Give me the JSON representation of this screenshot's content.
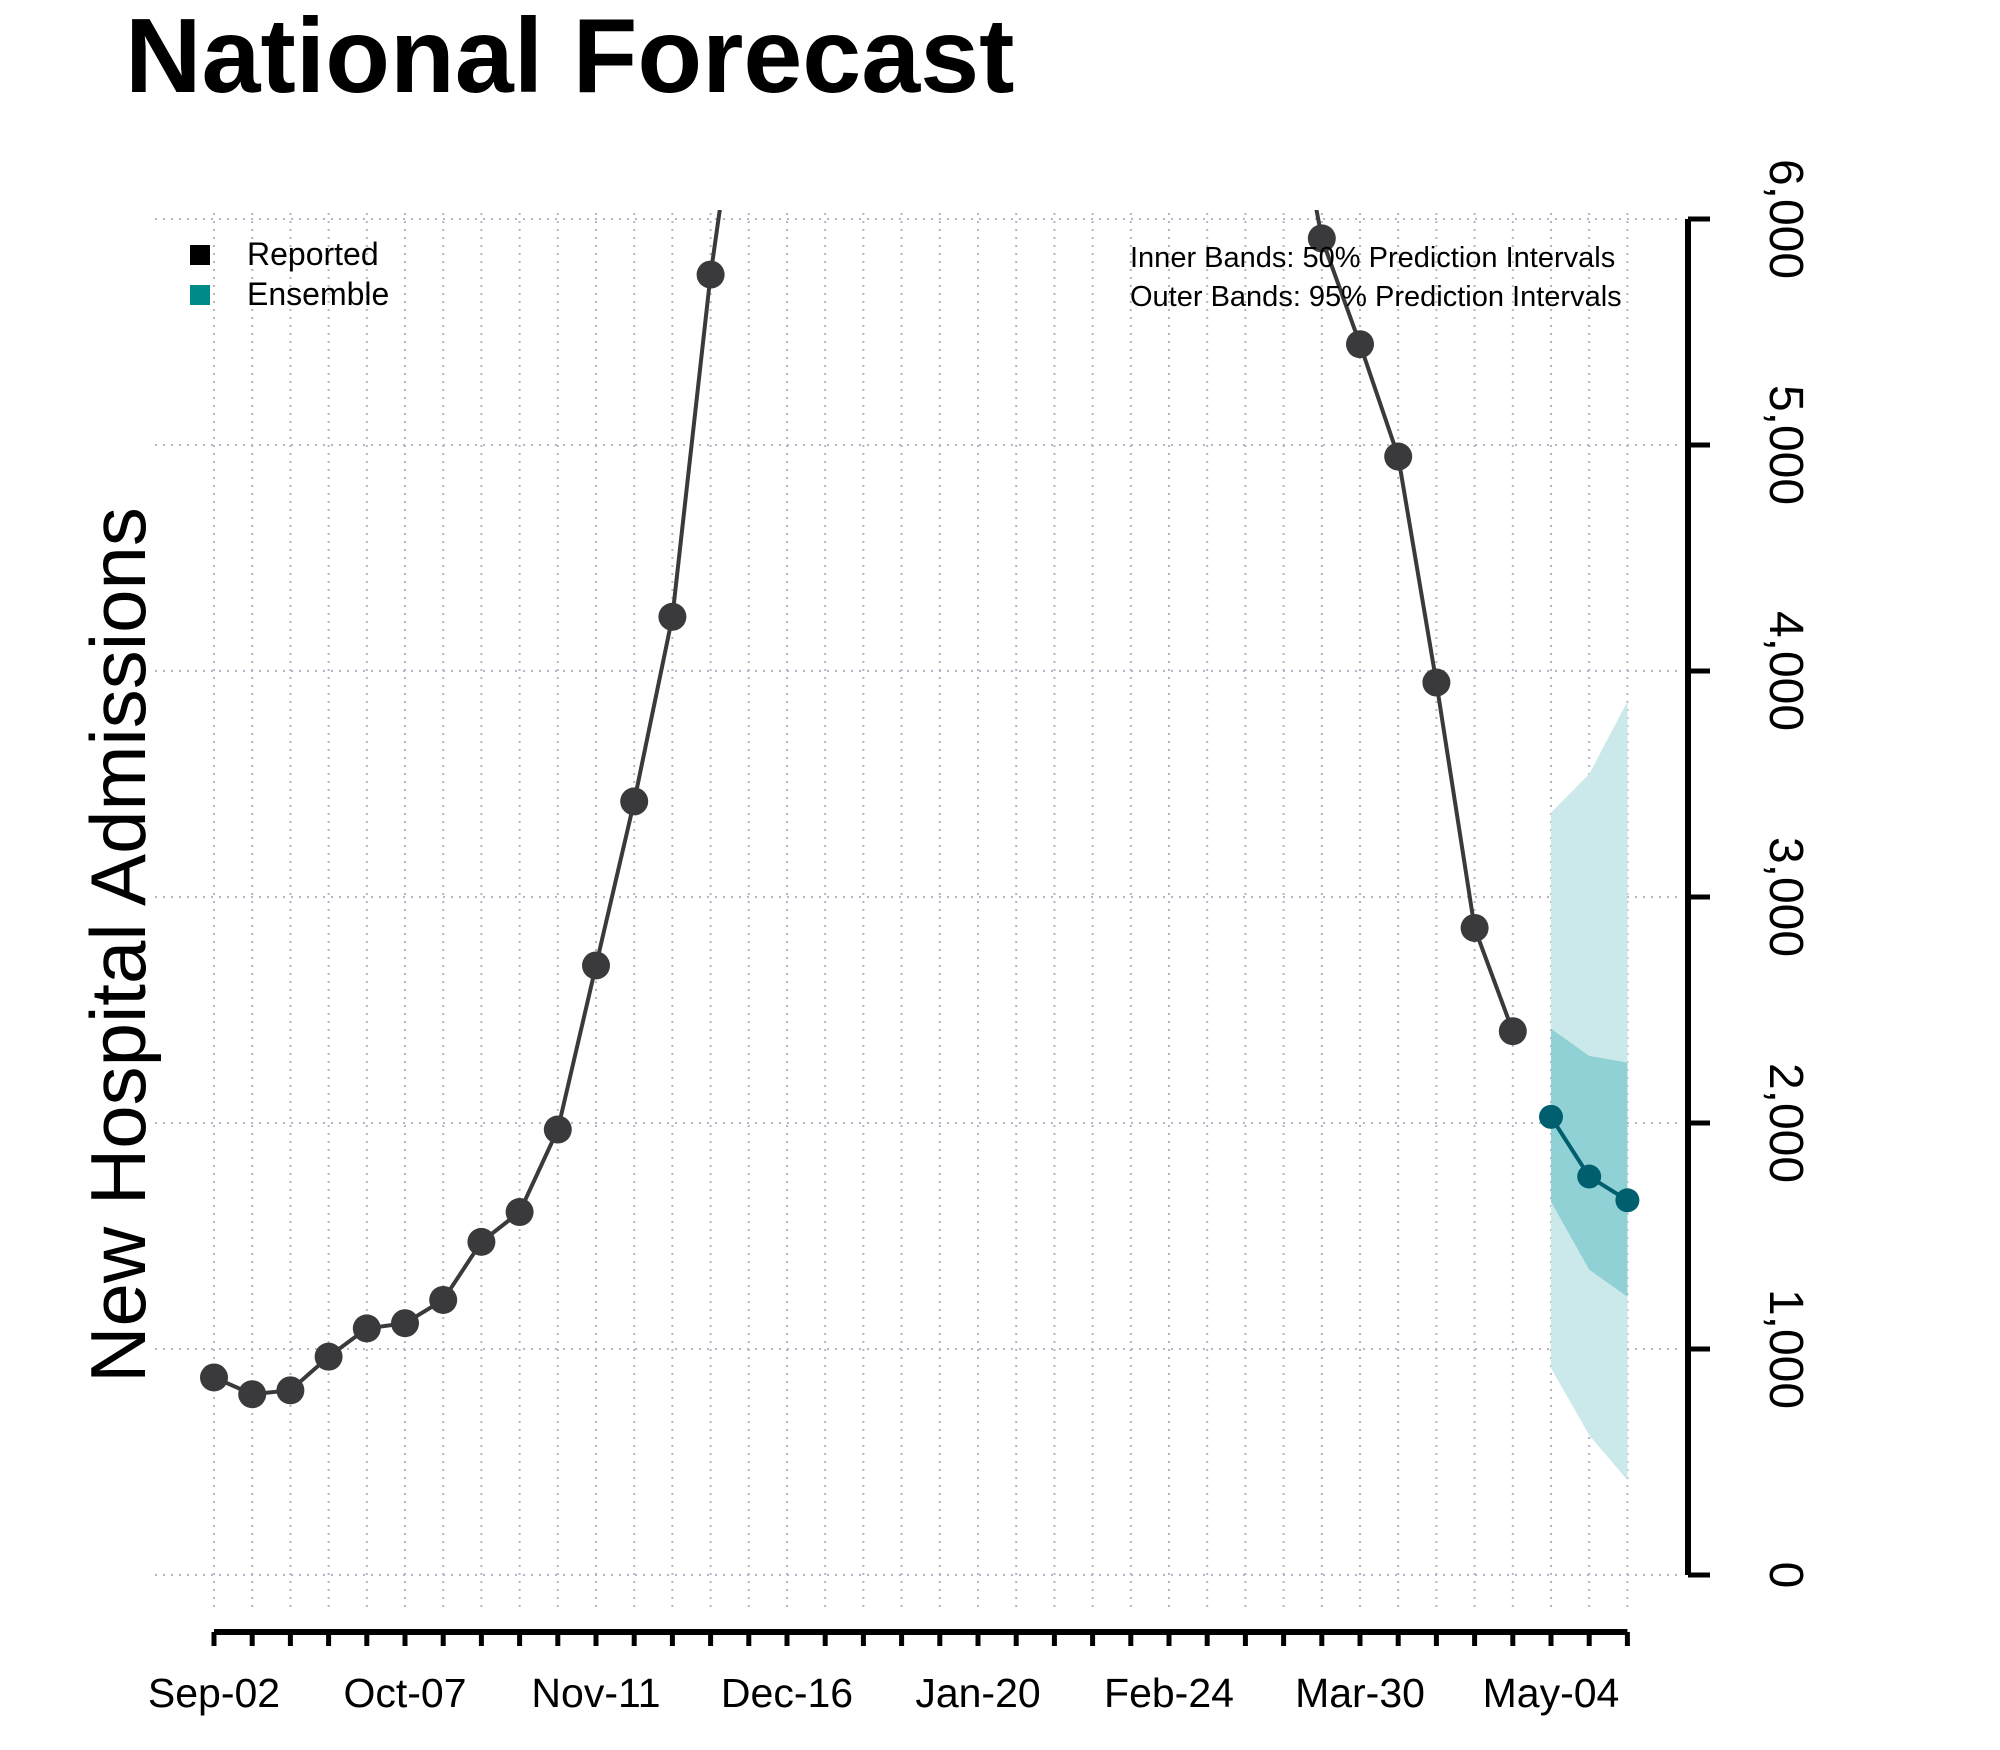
{
  "chart_data": {
    "type": "line",
    "title": "National Forecast",
    "ylabel": "New Hospital Admissions",
    "xlabel": "",
    "ylim": [
      0,
      6000
    ],
    "yticks": [
      0,
      1000,
      2000,
      3000,
      4000,
      5000,
      6000
    ],
    "ytick_labels": [
      "0",
      "1,000",
      "2,000",
      "3,000",
      "4,000",
      "5,000",
      "6,000"
    ],
    "x_tick_labels": [
      "Sep-02",
      "Oct-07",
      "Nov-11",
      "Dec-16",
      "Jan-20",
      "Feb-24",
      "Mar-30",
      "May-04"
    ],
    "x_label_interval_weeks": 5,
    "weeks_on_axis": 38,
    "grid": true,
    "legend": {
      "placement": "top-left",
      "items": [
        {
          "label": "Reported",
          "color": "#000000"
        },
        {
          "label": "Ensemble",
          "color": "#008b8b"
        }
      ]
    },
    "annotations": [
      "Inner Bands: 50% Prediction Intervals",
      "Outer Bands: 95% Prediction Intervals"
    ],
    "series": [
      {
        "name": "Reported",
        "color": "#3a3a3c",
        "week_index": [
          0,
          1,
          2,
          3,
          4,
          5,
          6,
          7,
          8,
          9,
          10,
          11,
          12,
          13,
          29,
          30,
          31,
          32,
          33,
          34
        ],
        "values": [
          874,
          800,
          817,
          966,
          1091,
          1114,
          1217,
          1474,
          1606,
          1971,
          2697,
          3423,
          4240,
          5754,
          5914,
          5446,
          4949,
          3949,
          2863,
          2406
        ]
      },
      {
        "name": "Ensemble",
        "color": "#005f6e",
        "week_index": [
          35,
          36,
          37
        ],
        "values": [
          2027,
          1763,
          1658
        ],
        "inner_lower": [
          1652,
          1351,
          1231
        ],
        "inner_upper": [
          2417,
          2297,
          2267
        ],
        "outer_lower": [
          916,
          619,
          420
        ],
        "outer_upper": [
          3373,
          3544,
          3865
        ],
        "inner_color": "#8fd1d4",
        "outer_color": "#cbe9eb"
      }
    ]
  }
}
